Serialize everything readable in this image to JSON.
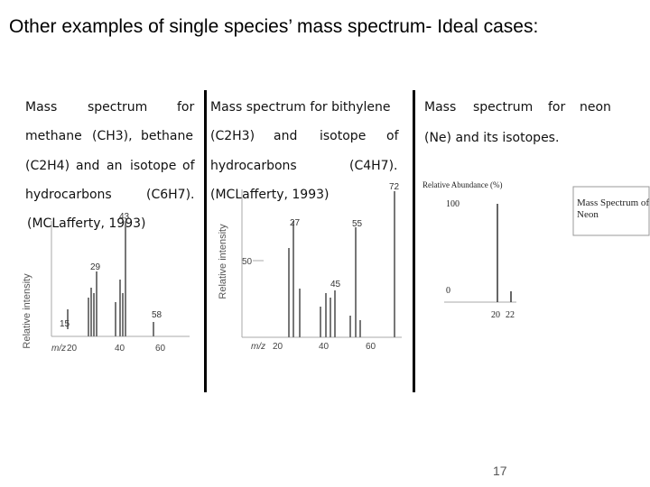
{
  "slide": {
    "title": "Other examples of single species’ mass spectrum- Ideal cases:",
    "page_number": "17"
  },
  "column1": {
    "line1": [
      "Mass",
      "spectrum",
      "for"
    ],
    "line2": [
      "methane",
      "(CH3),",
      "bethane"
    ],
    "line3": [
      "(C2H4)",
      "and",
      "an",
      "isotope",
      "of"
    ],
    "line4": [
      "hydrocarbons",
      "(C6H7)."
    ],
    "line5": "(MCLafferty, 1993)",
    "spectrum": {
      "ylabel": "Relative intensity",
      "xlabel": "m/z",
      "x_ticks": [
        "20",
        "40",
        "60"
      ],
      "peak_labels": [
        "15",
        "29",
        "43",
        "58"
      ]
    }
  },
  "column2": {
    "line1": "Mass spectrum for bithylene",
    "line2": [
      "(C2H3)",
      "and",
      "isotope",
      "of"
    ],
    "line3": [
      "hydrocarbons",
      "(C4H7)."
    ],
    "line4": "(MCLafferty, 1993)",
    "spectrum": {
      "ylabel": "Relative intensity",
      "xlabel": "m/z",
      "y_tick": "50",
      "x_ticks": [
        "20",
        "40",
        "60"
      ],
      "peak_labels": [
        "27",
        "55",
        "45",
        "72"
      ]
    }
  },
  "column3": {
    "line1": [
      "Mass",
      "spectrum",
      "for",
      "neon"
    ],
    "line2": "(Ne) and its isotopes.",
    "spectrum": {
      "ylabel": "Relative Abundance (%)",
      "y_ticks": [
        "100",
        "0"
      ],
      "x_ticks": [
        "20",
        "22"
      ],
      "box_title_line1": "Mass Spectrum of",
      "box_title_line2": "Neon"
    }
  }
}
